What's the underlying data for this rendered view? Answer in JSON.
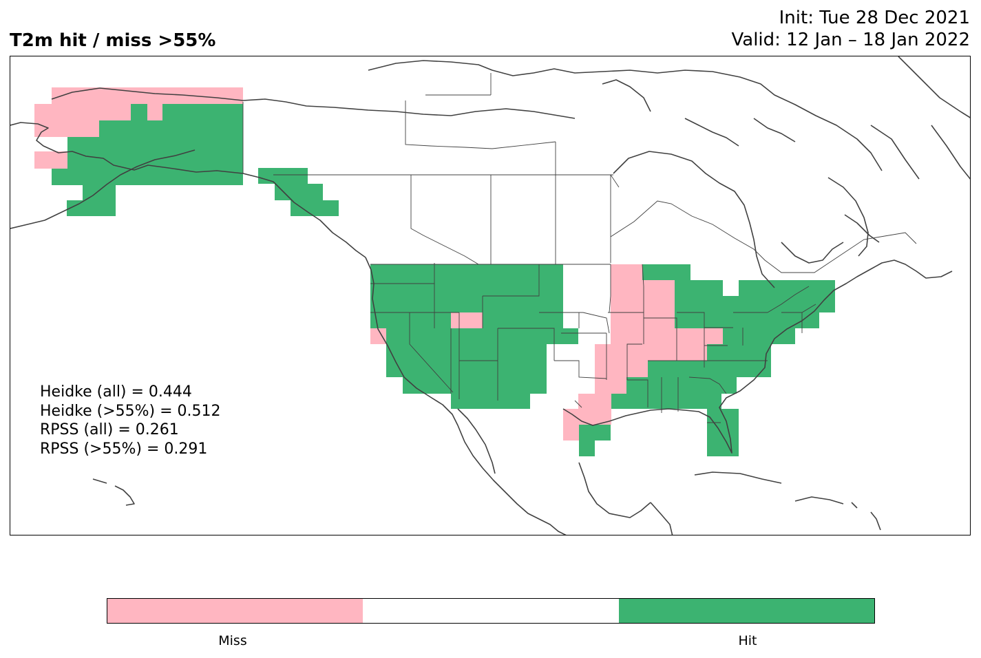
{
  "header": {
    "title": "T2m hit / miss  >55%",
    "init": "Init: Tue 28 Dec 2021",
    "valid": "Valid: 12 Jan – 18 Jan 2022"
  },
  "stats": {
    "heidke_all": "Heidke (all) = 0.444",
    "heidke_55": "Heidke (>55%) = 0.512",
    "rpss_all": "RPSS (all) = 0.261",
    "rpss_55": "RPSS (>55%) = 0.291"
  },
  "colors": {
    "miss": "#ffb6c1",
    "neutral": "#ffffff",
    "hit": "#3cb371",
    "coast": "#404040",
    "border": "#404040"
  },
  "legend": {
    "categories": [
      "Miss",
      "",
      "Hit"
    ],
    "miss_label": "Miss",
    "hit_label": "Hit"
  }
}
